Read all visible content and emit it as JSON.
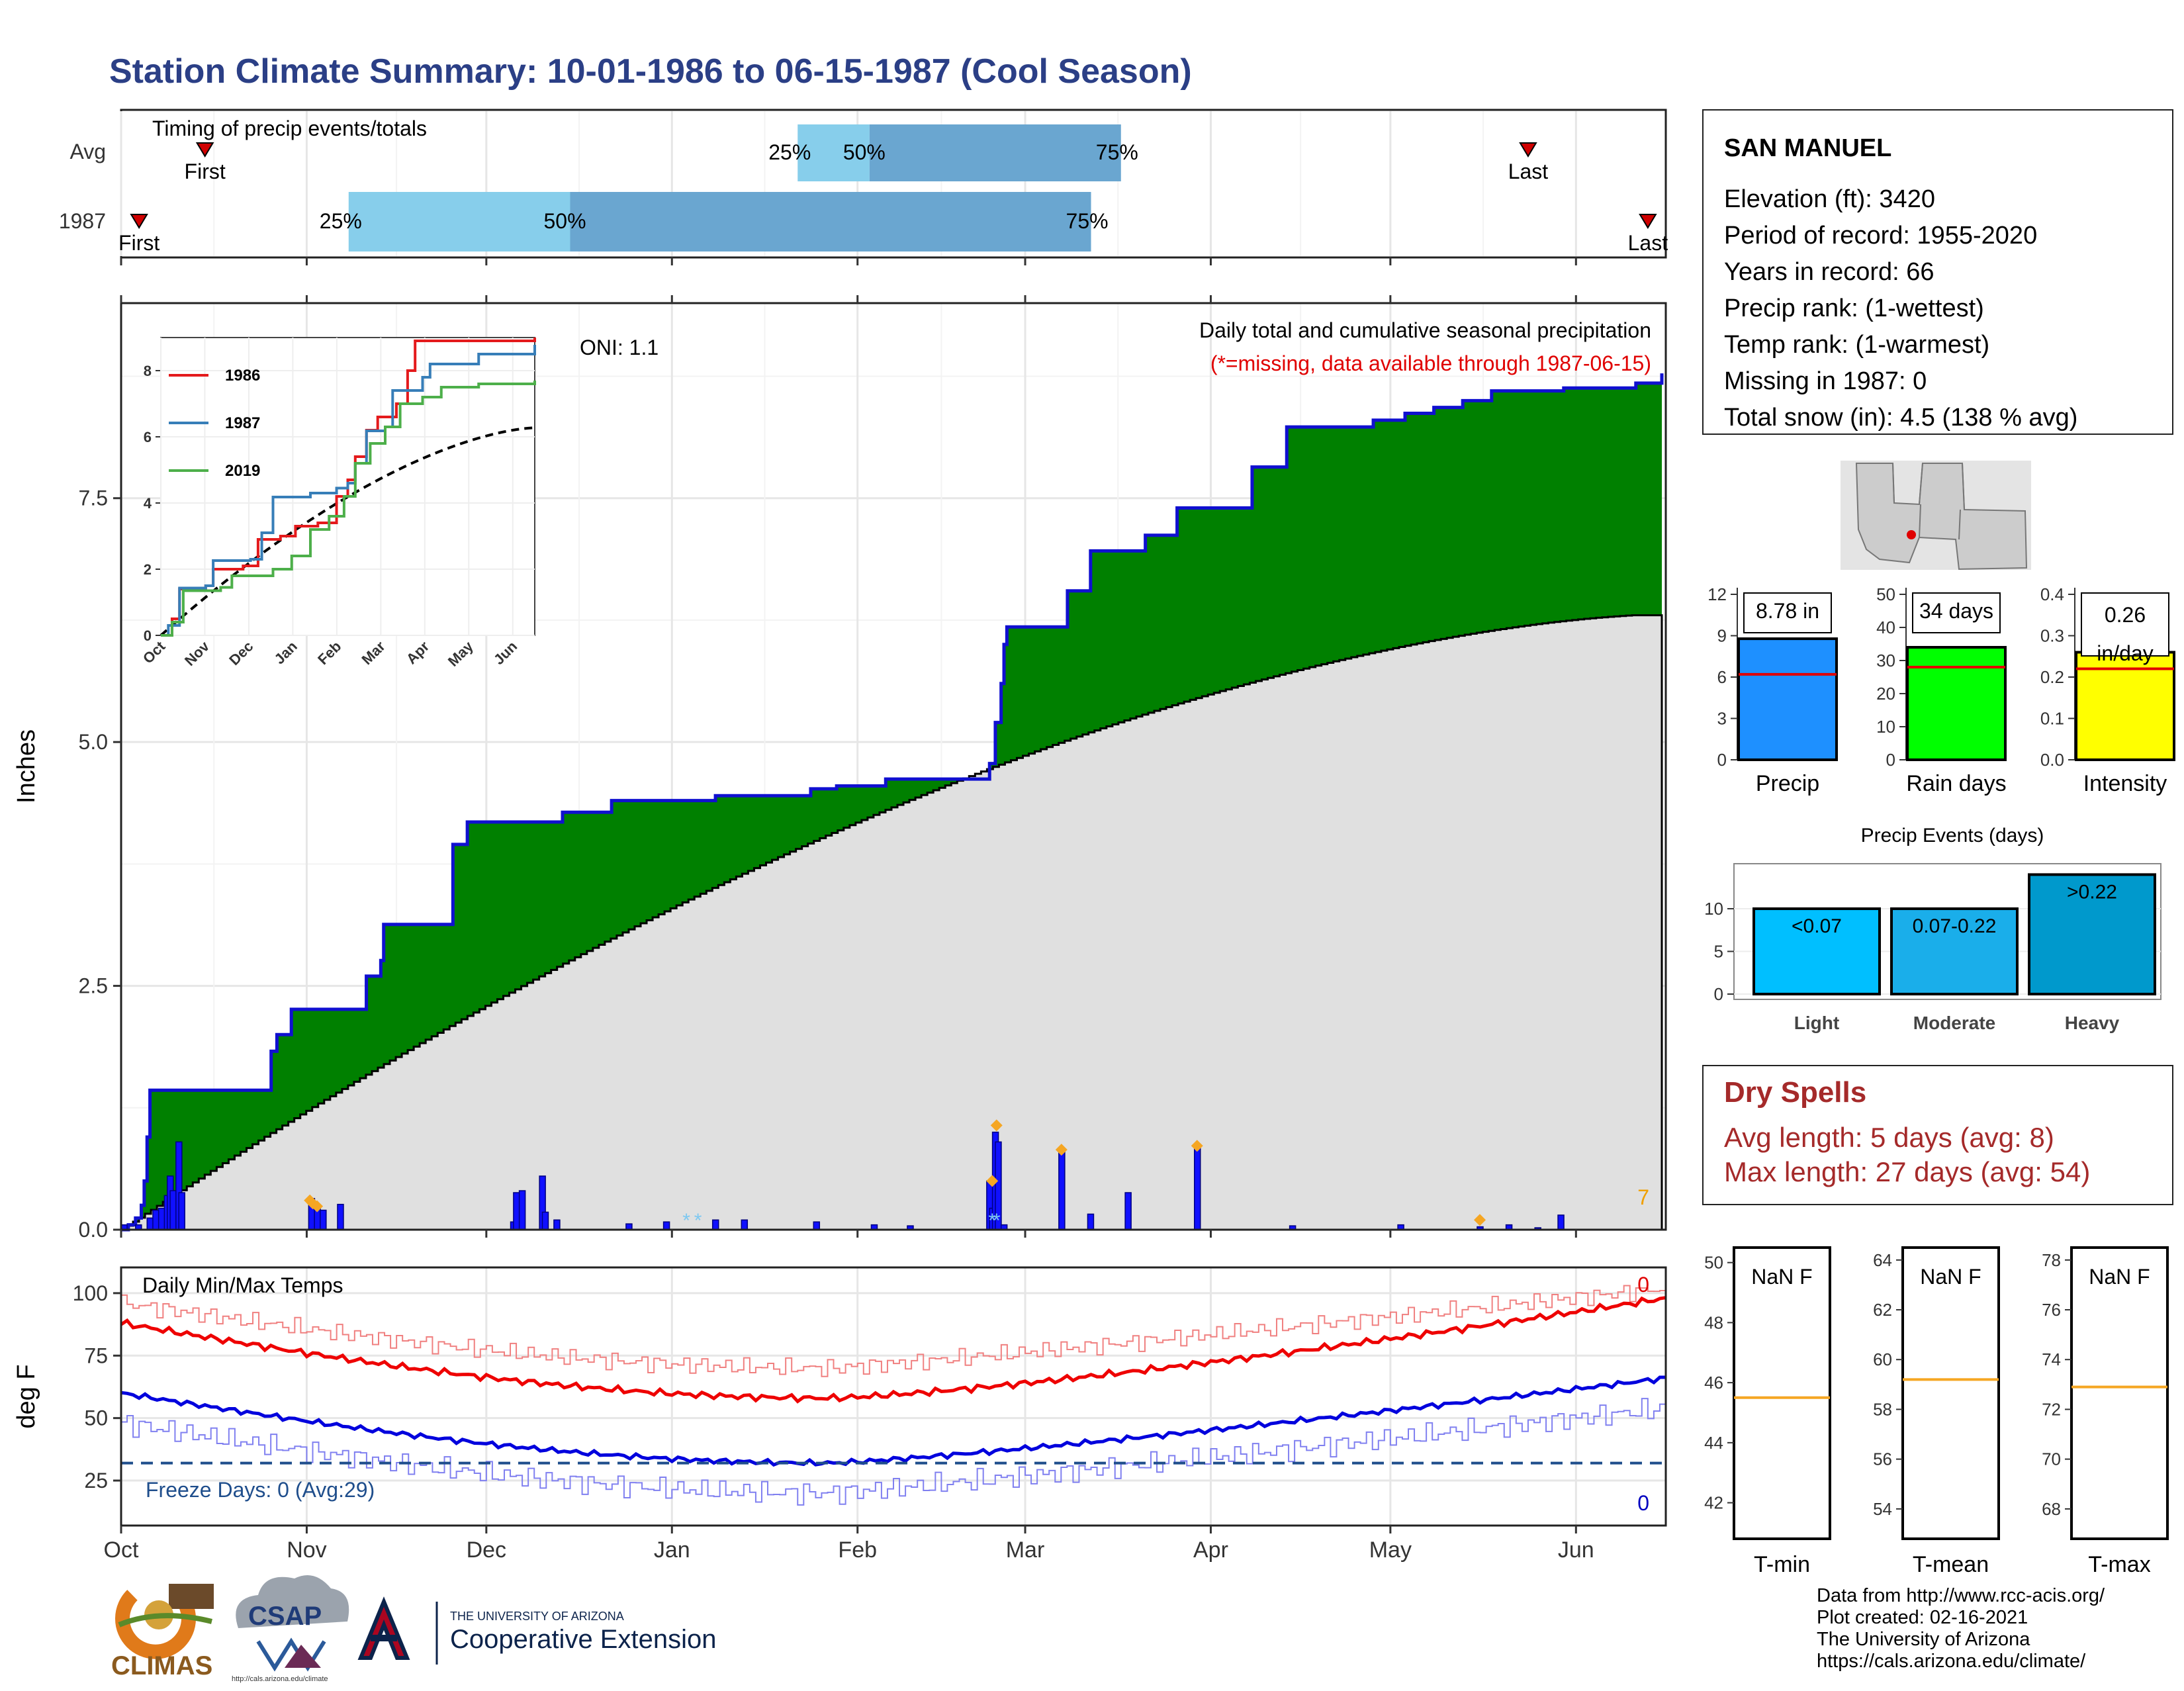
{
  "title": "Station Climate Summary: 10-01-1986 to 06-15-1987 (Cool Season)",
  "timing": {
    "label": "Timing of precip events/totals",
    "rows": [
      "Avg",
      "1987"
    ],
    "first_label": "First",
    "last_label": "Last",
    "p25": "25%",
    "p50": "50%",
    "p75": "75%",
    "avg": {
      "first": "1986-10-15",
      "p25": "1987-01-22",
      "p50": "1987-02-03",
      "p75": "1987-03-17",
      "last": "1987-05-24"
    },
    "year": {
      "first": "1986-10-04",
      "p25": "1986-11-08",
      "p50": "1986-12-15",
      "p75": "1987-03-12",
      "last": "1987-06-13"
    }
  },
  "station": {
    "name": "SAN MANUEL",
    "lines": [
      "Elevation (ft): 3420",
      "Period of record: 1955-2020",
      "Years in record: 66",
      "Precip rank:  (1-wettest)",
      "Temp rank:  (1-warmest)",
      "Missing in 1987: 0",
      "Total snow (in): 4.5 (138 % avg)"
    ]
  },
  "main_chart": {
    "ylabel": "Inches",
    "oni": "ONI: 1.1",
    "subtitle": "Daily total and cumulative seasonal precipitation",
    "missing_note": "(*=missing, data available through 1987-06-15)",
    "corner_count": "7",
    "x_ticks": [
      "Oct",
      "Nov",
      "Dec",
      "Jan",
      "Feb",
      "Mar",
      "Apr",
      "May",
      "Jun"
    ],
    "y_ticks": [
      "0.0",
      "2.5",
      "5.0",
      "7.5"
    ]
  },
  "inset": {
    "legend": [
      "1986",
      "1987",
      "2019"
    ],
    "colors": [
      "#e41a1c",
      "#377eb8",
      "#4daf4a"
    ],
    "x_ticks": [
      "Oct",
      "Nov",
      "Dec",
      "Jan",
      "Feb",
      "Mar",
      "Apr",
      "May",
      "Jun"
    ],
    "y_ticks": [
      "0",
      "2",
      "4",
      "6",
      "8"
    ]
  },
  "bars3": {
    "precip": {
      "label": "Precip",
      "value_text": "8.78 in",
      "ticks": [
        "0",
        "3",
        "6",
        "9",
        "12"
      ]
    },
    "raindays": {
      "label": "Rain days",
      "value_text": "34 days",
      "ticks": [
        "0",
        "10",
        "20",
        "30",
        "40",
        "50"
      ]
    },
    "intensity": {
      "label": "Intensity",
      "value_text": "0.26\nin/day",
      "ticks": [
        "0.0",
        "0.1",
        "0.2",
        "0.3",
        "0.4"
      ]
    }
  },
  "events": {
    "title": "Precip Events (days)",
    "bars": [
      {
        "name": "Light",
        "label": "<0.07",
        "value": 10
      },
      {
        "name": "Moderate",
        "label": "0.07-0.22",
        "value": 10
      },
      {
        "name": "Heavy",
        "label": ">0.22",
        "value": 14
      }
    ],
    "ticks": [
      "0",
      "5",
      "10"
    ]
  },
  "dry_spells": {
    "title": "Dry Spells",
    "avg": "Avg length: 5 days (avg: 8)",
    "max": "Max length: 27 days (avg: 54)"
  },
  "temps": {
    "title": "Daily Min/Max Temps",
    "ylabel": "deg F",
    "freeze": "Freeze Days: 0 (Avg:29)",
    "top_count": "0",
    "bottom_count": "0",
    "y_ticks": [
      "25",
      "50",
      "75",
      "100"
    ],
    "x_ticks": [
      "Oct",
      "Nov",
      "Dec",
      "Jan",
      "Feb",
      "Mar",
      "Apr",
      "May",
      "Jun"
    ]
  },
  "temp_boxes": [
    {
      "label": "T-min",
      "value_text": "NaN F",
      "ticks": [
        "42",
        "44",
        "46",
        "48",
        "50"
      ]
    },
    {
      "label": "T-mean",
      "value_text": "NaN F",
      "ticks": [
        "54",
        "56",
        "58",
        "60",
        "62",
        "64"
      ]
    },
    {
      "label": "T-max",
      "value_text": "NaN F",
      "ticks": [
        "68",
        "70",
        "72",
        "74",
        "76",
        "78"
      ]
    }
  ],
  "footer": {
    "lines": [
      "Data from http://www.rcc-acis.org/",
      "Plot created: 02-16-2021",
      "The University of Arizona",
      "https://cals.arizona.edu/climate/"
    ],
    "climas": "CLIMAS",
    "csap": "CSAP",
    "csap_url": "http://cals.arizona.edu/climate",
    "ua_top": "THE UNIVERSITY OF ARIZONA",
    "ua_bottom": "Cooperative Extension"
  },
  "chart_data": [
    {
      "type": "area",
      "title": "Daily total and cumulative seasonal precipitation",
      "ylabel": "Inches",
      "ylim": [
        0,
        9.5
      ],
      "x_range": [
        "1986-10-01",
        "1987-06-15"
      ],
      "series": [
        {
          "name": "cumulative",
          "values": [
            [
              0,
              0
            ],
            [
              5,
              0.05
            ],
            [
              10,
              0.12
            ],
            [
              14,
              0.25
            ],
            [
              16,
              0.5
            ],
            [
              18,
              0.95
            ],
            [
              20,
              1.43
            ],
            [
              102,
              1.43
            ],
            [
              104,
              1.83
            ],
            [
              108,
              2.0
            ],
            [
              116,
              2.0
            ],
            [
              118,
              2.26
            ],
            [
              168,
              2.26
            ],
            [
              170,
              2.6
            ],
            [
              180,
              2.76
            ],
            [
              182,
              3.13
            ],
            [
              222,
              3.13
            ],
            [
              230,
              3.95
            ],
            [
              240,
              4.18
            ],
            [
              300,
              4.18
            ],
            [
              306,
              4.28
            ],
            [
              330,
              4.28
            ],
            [
              340,
              4.4
            ],
            [
              400,
              4.4
            ],
            [
              412,
              4.45
            ],
            [
              470,
              4.45
            ],
            [
              478,
              4.52
            ],
            [
              496,
              4.55
            ],
            [
              530,
              4.62
            ],
            [
              556,
              4.62
            ],
            [
              600,
              4.62
            ],
            [
              602,
              4.78
            ],
            [
              606,
              5.2
            ],
            [
              610,
              5.6
            ],
            [
              612,
              6.0
            ],
            [
              614,
              6.18
            ],
            [
              650,
              6.18
            ],
            [
              656,
              6.55
            ],
            [
              672,
              6.96
            ],
            [
              700,
              6.96
            ],
            [
              710,
              7.12
            ],
            [
              730,
              7.12
            ],
            [
              732,
              7.4
            ],
            [
              764,
              7.4
            ],
            [
              782,
              7.4
            ],
            [
              784,
              7.82
            ],
            [
              800,
              7.82
            ],
            [
              808,
              8.23
            ],
            [
              850,
              8.23
            ],
            [
              868,
              8.3
            ],
            [
              890,
              8.37
            ],
            [
              910,
              8.43
            ],
            [
              930,
              8.5
            ],
            [
              950,
              8.6
            ],
            [
              1000,
              8.63
            ],
            [
              1050,
              8.68
            ],
            [
              1068,
              8.78
            ]
          ]
        }
      ]
    },
    {
      "type": "line",
      "title": "Daily Min/Max Temps",
      "ylabel": "deg F",
      "series": [
        {
          "name": "",
          "values": []
        }
      ]
    },
    {
      "type": "bar",
      "title": "Precip Events (days)",
      "categories": [
        "Light",
        "Moderate",
        "Heavy"
      ],
      "values": [
        10,
        10,
        14
      ]
    }
  ]
}
